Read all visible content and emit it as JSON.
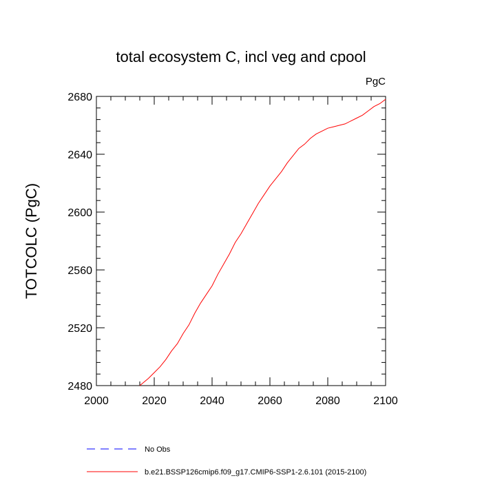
{
  "chart_data": {
    "type": "line",
    "title": "total ecosystem C, incl veg and cpool",
    "units": "PgC",
    "xlabel": "",
    "ylabel": "TOTCOLC  (PgC)",
    "xlim": [
      2000,
      2100
    ],
    "ylim": [
      2480,
      2680
    ],
    "xticks": [
      2000,
      2020,
      2040,
      2060,
      2080,
      2100
    ],
    "yticks": [
      2480,
      2520,
      2560,
      2600,
      2640,
      2680
    ],
    "series": [
      {
        "name": "b.e21.BSSP126cmip6.f09_g17.CMIP6-SSP1-2.6.101 (2015-2100)",
        "color": "#ff0000",
        "style": "solid",
        "x": [
          2015,
          2018,
          2020,
          2022,
          2024,
          2026,
          2028,
          2030,
          2032,
          2034,
          2036,
          2038,
          2040,
          2042,
          2044,
          2046,
          2048,
          2050,
          2052,
          2054,
          2056,
          2058,
          2060,
          2062,
          2064,
          2066,
          2068,
          2070,
          2072,
          2074,
          2076,
          2078,
          2080,
          2082,
          2084,
          2086,
          2088,
          2090,
          2092,
          2094,
          2096,
          2098,
          2100
        ],
        "y": [
          2480,
          2485,
          2489,
          2493,
          2498,
          2504,
          2509,
          2516,
          2522,
          2530,
          2537,
          2543,
          2549,
          2557,
          2564,
          2571,
          2579,
          2585,
          2592,
          2599,
          2606,
          2612,
          2618,
          2623,
          2628,
          2634,
          2639,
          2644,
          2647,
          2651,
          2654,
          2656,
          2658,
          2659,
          2660,
          2661,
          2663,
          2665,
          2667,
          2670,
          2673,
          2675,
          2678
        ]
      }
    ],
    "legend": [
      {
        "label": "No Obs",
        "color": "#0000ff",
        "style": "dashed"
      },
      {
        "label": "b.e21.BSSP126cmip6.f09_g17.CMIP6-SSP1-2.6.101 (2015-2100)",
        "color": "#ff0000",
        "style": "solid"
      }
    ]
  }
}
